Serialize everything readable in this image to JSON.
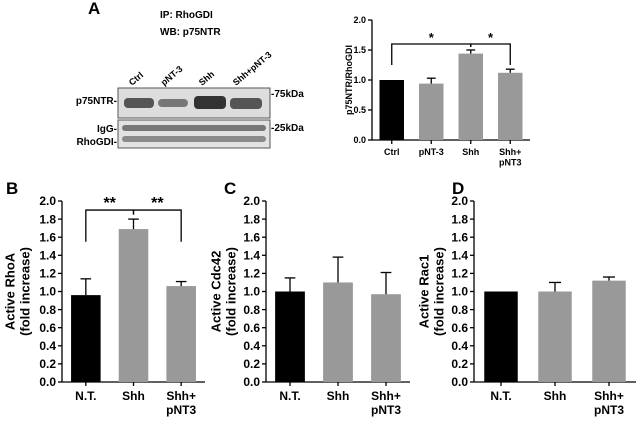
{
  "blot": {
    "ip": "IP: RhoGDI",
    "wb": "WB: p75NTR",
    "lanes": [
      "Ctrl",
      "pNT-3",
      "Shh",
      "Shh+pNT-3"
    ],
    "row_labels": [
      "p75NTR-",
      "IgG-",
      "RhoGDI-"
    ],
    "markers": [
      "-75kDa",
      "-25kDa"
    ]
  },
  "chart_data": [
    {
      "type": "bar",
      "panel": "A",
      "ylabel": "p75NTR/RhoGDI",
      "categories": [
        "Ctrl",
        "pNT-3",
        "Shh",
        "Shh+\npNT3"
      ],
      "values": [
        1.0,
        0.94,
        1.44,
        1.12
      ],
      "errors": [
        0,
        0.09,
        0.06,
        0.06
      ],
      "colors": [
        "#000000",
        "#999999",
        "#999999",
        "#999999"
      ],
      "ylim": [
        0,
        2.0
      ],
      "yticks": [
        {
          "value": 0,
          "label": "0.0"
        },
        0.5,
        {
          "value": 1,
          "label": "1.0"
        },
        1.5,
        {
          "value": 2,
          "label": "2.0"
        }
      ],
      "significance": [
        {
          "pair": [
            0,
            2
          ],
          "label": "*"
        },
        {
          "pair": [
            2,
            3
          ],
          "label": "*"
        }
      ]
    },
    {
      "type": "bar",
      "panel": "B",
      "ylabel": "Active RhoA\n(fold increase)",
      "categories": [
        "N.T.",
        "Shh",
        "Shh+\npNT3"
      ],
      "values": [
        0.96,
        1.69,
        1.06
      ],
      "errors": [
        0.18,
        0.11,
        0.05
      ],
      "colors": [
        "#000000",
        "#999999",
        "#999999"
      ],
      "ylim": [
        0,
        2.0
      ],
      "yticks": [
        {
          "value": 0,
          "label": "0.0"
        },
        0.2,
        0.4,
        0.6,
        0.8,
        {
          "value": 1,
          "label": "1.0"
        },
        1.2,
        1.4,
        1.6,
        1.8,
        {
          "value": 2,
          "label": "2.0"
        }
      ],
      "significance": [
        {
          "pair": [
            0,
            1
          ],
          "label": "**"
        },
        {
          "pair": [
            1,
            2
          ],
          "label": "**"
        }
      ]
    },
    {
      "type": "bar",
      "panel": "C",
      "ylabel": "Active Cdc42\n(fold increase)",
      "categories": [
        "N.T.",
        "Shh",
        "Shh+\npNT3"
      ],
      "values": [
        1.0,
        1.1,
        0.97
      ],
      "errors": [
        0.15,
        0.28,
        0.24
      ],
      "colors": [
        "#000000",
        "#999999",
        "#999999"
      ],
      "ylim": [
        0,
        2.0
      ],
      "yticks": [
        {
          "value": 0,
          "label": "0.0"
        },
        0.2,
        0.4,
        0.6,
        0.8,
        {
          "value": 1,
          "label": "1.0"
        },
        1.2,
        1.4,
        1.6,
        1.8,
        {
          "value": 2,
          "label": "2.0"
        }
      ]
    },
    {
      "type": "bar",
      "panel": "D",
      "ylabel": "Active Rac1\n(fold increase)",
      "categories": [
        "N.T.",
        "Shh",
        "Shh+\npNT3"
      ],
      "values": [
        1.0,
        1.0,
        1.12
      ],
      "errors": [
        0,
        0.1,
        0.04
      ],
      "colors": [
        "#000000",
        "#999999",
        "#999999"
      ],
      "ylim": [
        0,
        2.0
      ],
      "yticks": [
        {
          "value": 0,
          "label": "0.0"
        },
        0.2,
        0.4,
        0.6,
        0.8,
        {
          "value": 1,
          "label": "1.0"
        },
        1.2,
        1.4,
        1.6,
        1.8,
        {
          "value": 2,
          "label": "2.0"
        }
      ]
    }
  ]
}
